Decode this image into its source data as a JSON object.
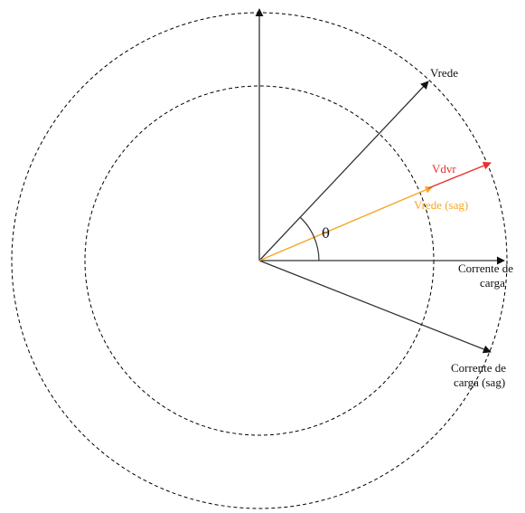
{
  "diagram": {
    "labels": {
      "vrede": "Vrede",
      "vdvr": "Vdvr",
      "vrede_sag": "Vrede (sag)",
      "theta": "θ",
      "corrente_line1": "Corrente de",
      "corrente_line2": "carga",
      "corrente_sag_line1": "Corrente de",
      "corrente_sag_line2": "carga (sag)"
    },
    "colors": {
      "default": "#333333",
      "vdvr": "#e8302a",
      "vrede_sag": "#f5a623",
      "circles": "#000000"
    }
  }
}
